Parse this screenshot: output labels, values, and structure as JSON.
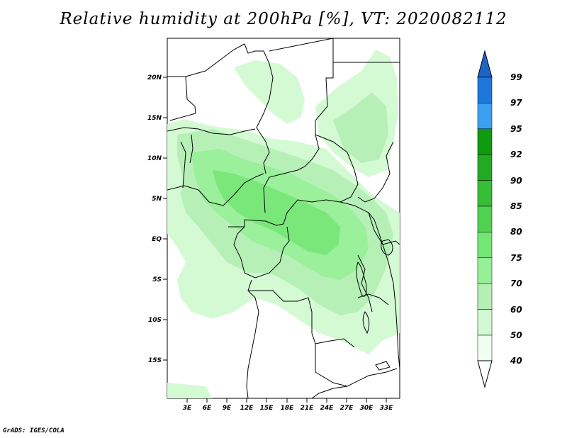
{
  "title": "Relative humidity at 200hPa [%], VT: 2020082112",
  "footer": "GrADS: IGES/COLA",
  "map": {
    "region": "Central Africa",
    "lat_labels": [
      "20N",
      "15N",
      "10N",
      "5N",
      "EQ",
      "5S",
      "10S",
      "15S"
    ],
    "lon_labels": [
      "3E",
      "6E",
      "9E",
      "12E",
      "15E",
      "18E",
      "21E",
      "24E",
      "27E",
      "30E",
      "33E"
    ],
    "lat_range": [
      -20,
      25
    ],
    "lon_range": [
      0,
      35
    ]
  },
  "colorbar": {
    "levels": [
      "99",
      "97",
      "95",
      "92",
      "90",
      "85",
      "80",
      "75",
      "70",
      "60",
      "50",
      "40"
    ],
    "colors": [
      "#1e78dc",
      "#1e8cf0",
      "#3ca0f0",
      "#0f9b0f",
      "#23aa23",
      "#37be37",
      "#50d250",
      "#73e673",
      "#96f096",
      "#b4f0b4",
      "#d2fad2",
      "#f0fff0"
    ],
    "top_arrow_color": "#1e64c8",
    "bottom_arrow_color": "#ffffff"
  }
}
